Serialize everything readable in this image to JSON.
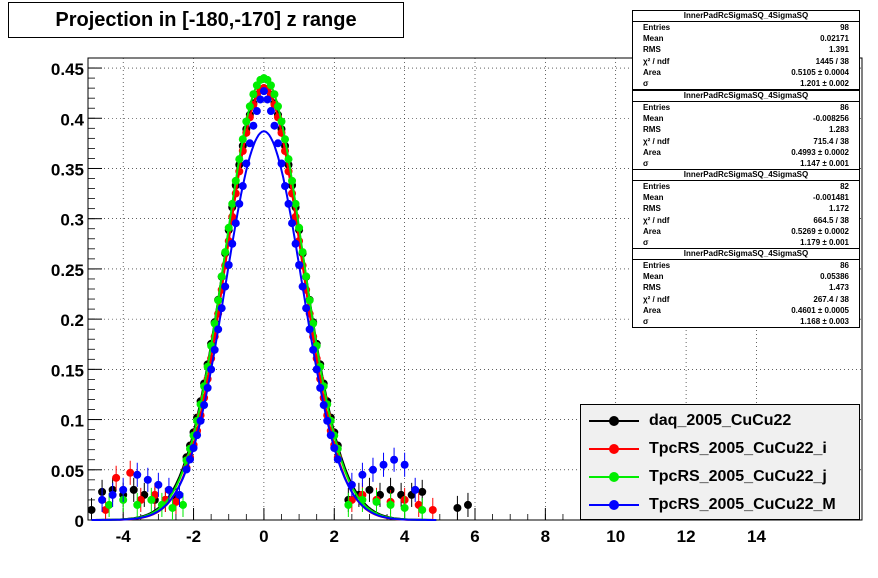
{
  "title": "Projection in [-180,-170] z range",
  "chart_data": {
    "type": "scatter",
    "title": "Projection in [-180,-170] z range",
    "xlim": [
      -5,
      17
    ],
    "ylim": [
      0,
      0.46
    ],
    "x_ticks": [
      -4,
      -2,
      0,
      2,
      4,
      6,
      8,
      10,
      12,
      14
    ],
    "y_ticks": [
      0,
      0.05,
      0.1,
      0.15,
      0.2,
      0.25,
      0.3,
      0.35,
      0.4,
      0.45
    ],
    "x_tick_labels": [
      "-4",
      "-2",
      "0",
      "2",
      "4",
      "6",
      "8",
      "10",
      "12",
      "14"
    ],
    "y_tick_labels": [
      "0",
      "0.05",
      "0.1",
      "0.15",
      "0.2",
      "0.25",
      "0.3",
      "0.35",
      "0.4",
      "0.45"
    ],
    "grid": true,
    "legend_position": "bottom-right",
    "series": [
      {
        "name": "daq_2005_CuCu22",
        "color": "#000000",
        "sigma": 1.201,
        "peak": 0.43
      },
      {
        "name": "TpcRS_2005_CuCu22_i",
        "color": "#ff0000",
        "sigma": 1.147,
        "peak": 0.43
      },
      {
        "name": "TpcRS_2005_CuCu22_j",
        "color": "#00ee00",
        "sigma": 1.179,
        "peak": 0.44
      },
      {
        "name": "TpcRS_2005_CuCu22_M",
        "color": "#0000ff",
        "sigma": 1.168,
        "peak": 0.387
      }
    ]
  },
  "stats": [
    {
      "title": "InnerPadRcSigmaSQ_4SigmaSQ",
      "rows": [
        [
          "Entries",
          "98"
        ],
        [
          "Mean",
          "0.02171"
        ],
        [
          "RMS",
          "1.391"
        ],
        [
          "χ² / ndf",
          "1445 / 38"
        ],
        [
          "Area",
          "0.5105 ± 0.0004"
        ],
        [
          "σ",
          "1.201 ± 0.002"
        ]
      ]
    },
    {
      "title": "InnerPadRcSigmaSQ_4SigmaSQ",
      "rows": [
        [
          "Entries",
          "86"
        ],
        [
          "Mean",
          "-0.008256"
        ],
        [
          "RMS",
          "1.283"
        ],
        [
          "χ² / ndf",
          "715.4 / 38"
        ],
        [
          "Area",
          "0.4993 ± 0.0002"
        ],
        [
          "σ",
          "1.147 ± 0.001"
        ]
      ]
    },
    {
      "title": "InnerPadRcSigmaSQ_4SigmaSQ",
      "rows": [
        [
          "Entries",
          "82"
        ],
        [
          "Mean",
          "-0.001481"
        ],
        [
          "RMS",
          "1.172"
        ],
        [
          "χ² / ndf",
          "664.5 / 38"
        ],
        [
          "Area",
          "0.5269 ± 0.0002"
        ],
        [
          "σ",
          "1.179 ± 0.001"
        ]
      ]
    },
    {
      "title": "InnerPadRcSigmaSQ_4SigmaSQ",
      "rows": [
        [
          "Entries",
          "86"
        ],
        [
          "Mean",
          "0.05386"
        ],
        [
          "RMS",
          "1.473"
        ],
        [
          "χ² / ndf",
          "267.4 / 38"
        ],
        [
          "Area",
          "0.4601 ± 0.0005"
        ],
        [
          "σ",
          "1.168 ± 0.003"
        ]
      ]
    }
  ],
  "legend": [
    {
      "label": "daq_2005_CuCu22",
      "color": "#000000"
    },
    {
      "label": "TpcRS_2005_CuCu22_i",
      "color": "#ff0000"
    },
    {
      "label": "TpcRS_2005_CuCu22_j",
      "color": "#00ee00"
    },
    {
      "label": "TpcRS_2005_CuCu22_M",
      "color": "#0000ff"
    }
  ]
}
